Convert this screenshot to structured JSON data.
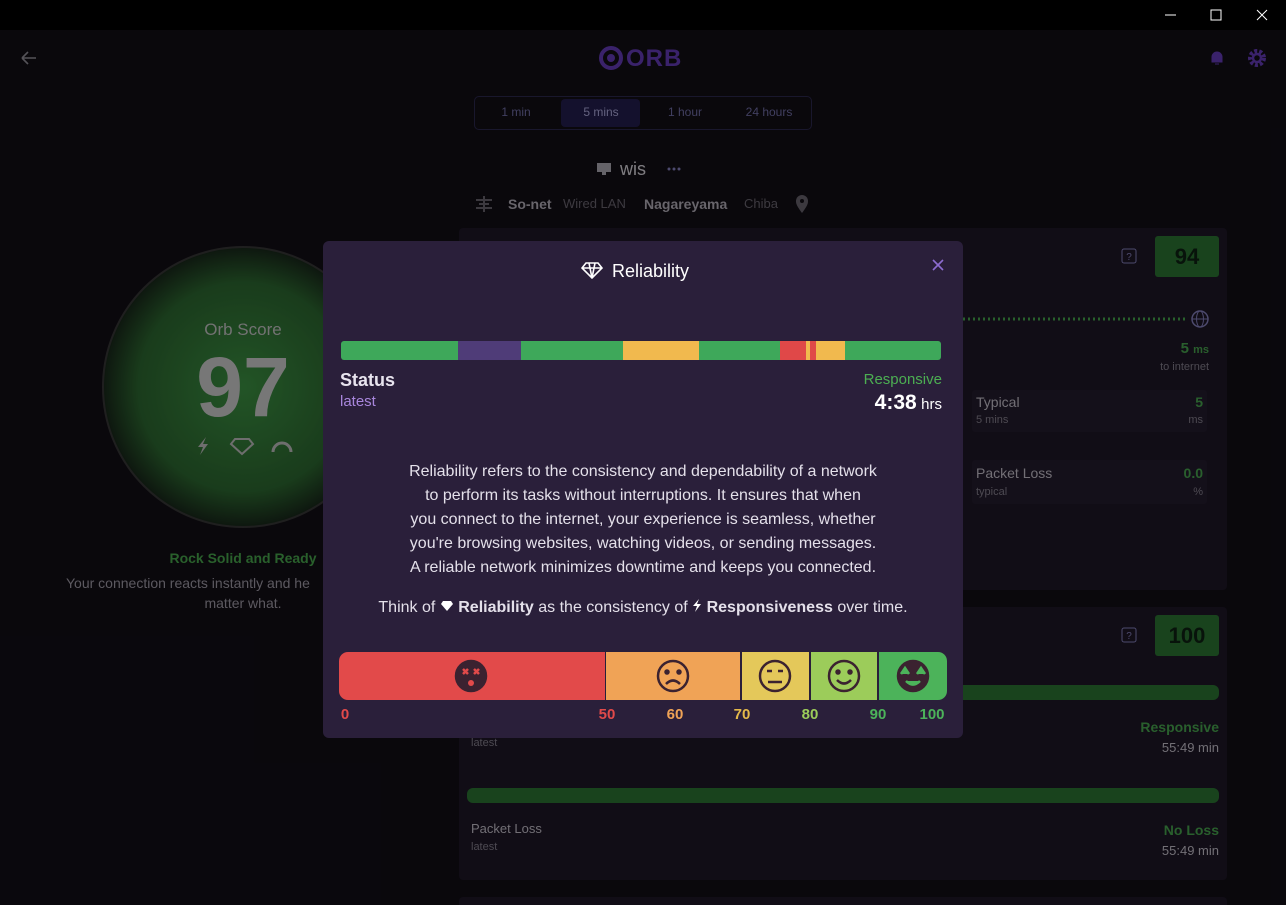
{
  "header": {
    "logo": "ORB"
  },
  "time_tabs": {
    "options": [
      "1 min",
      "5 mins",
      "1 hour",
      "24 hours"
    ]
  },
  "device": {
    "name": "wis"
  },
  "network": {
    "isp": "So-net",
    "connection": "Wired LAN",
    "city": "Nagareyama",
    "region": "Chiba"
  },
  "score": {
    "label": "Orb Score",
    "value": 97,
    "status": "Rock Solid and Ready",
    "description_lines": [
      "Your connection reacts instantly and he",
      "matter what."
    ]
  },
  "cards": [
    {
      "score": 94,
      "latency": {
        "value": 5,
        "unit": "ms",
        "caption": "to internet"
      },
      "stats": [
        {
          "label": "Typical",
          "sub": "5 mins",
          "value": 5,
          "unit": "ms"
        },
        {
          "label": "Packet Loss",
          "sub": "typical",
          "value": "0.0",
          "unit": "%"
        }
      ]
    },
    {
      "score": 100,
      "rows": [
        {
          "sub": "latest",
          "state": "Responsive",
          "duration": "55:49 min"
        },
        {
          "label": "Packet Loss",
          "sub": "latest",
          "state": "No Loss",
          "duration": "55:49 min"
        }
      ]
    }
  ],
  "modal": {
    "title": "Reliability",
    "status_label": "Status",
    "status_sub": "latest",
    "state": "Responsive",
    "duration": "4:38",
    "duration_unit": "hrs",
    "paragraph_lines": [
      "Reliability refers to the consistency and dependability of a network",
      "to perform its tasks without interruptions. It ensures that when",
      "you connect to the internet, your experience is seamless, whether",
      "you're browsing websites, watching videos, or sending messages.",
      "A reliable network minimizes downtime and keeps you connected."
    ],
    "tagline": {
      "prefix": "Think of",
      "term1": "Reliability",
      "middle": "as the consistency of",
      "term2": "Responsiveness",
      "suffix": "over time."
    },
    "scale_labels": [
      0,
      50,
      60,
      70,
      80,
      90,
      100
    ]
  }
}
